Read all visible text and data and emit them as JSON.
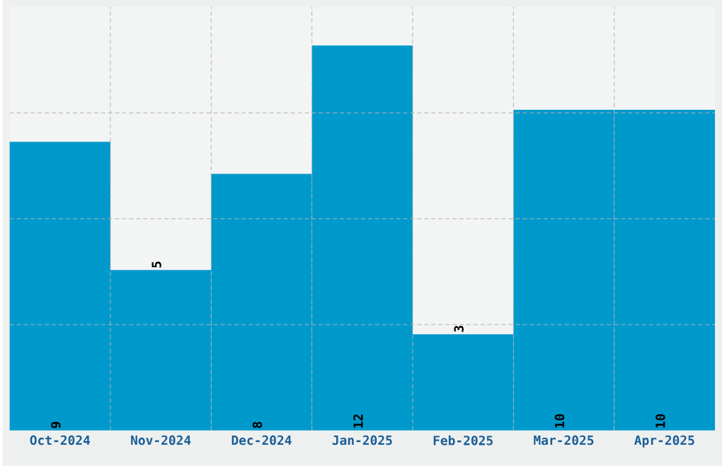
{
  "chart_data": {
    "type": "bar",
    "categories": [
      "Oct-2024",
      "Nov-2024",
      "Dec-2024",
      "Jan-2025",
      "Feb-2025",
      "Mar-2025",
      "Apr-2025"
    ],
    "values": [
      9,
      5,
      8,
      12,
      3,
      10,
      10
    ],
    "color": "#0099cc",
    "ylim": [
      0,
      13.2
    ],
    "yticks": [
      {
        "value": 3.3,
        "label": null
      },
      {
        "value": 6.6,
        "label": null
      },
      {
        "value": 9.9,
        "label": null
      }
    ],
    "tick_labels": "x",
    "grid": true,
    "data_labels": true
  }
}
